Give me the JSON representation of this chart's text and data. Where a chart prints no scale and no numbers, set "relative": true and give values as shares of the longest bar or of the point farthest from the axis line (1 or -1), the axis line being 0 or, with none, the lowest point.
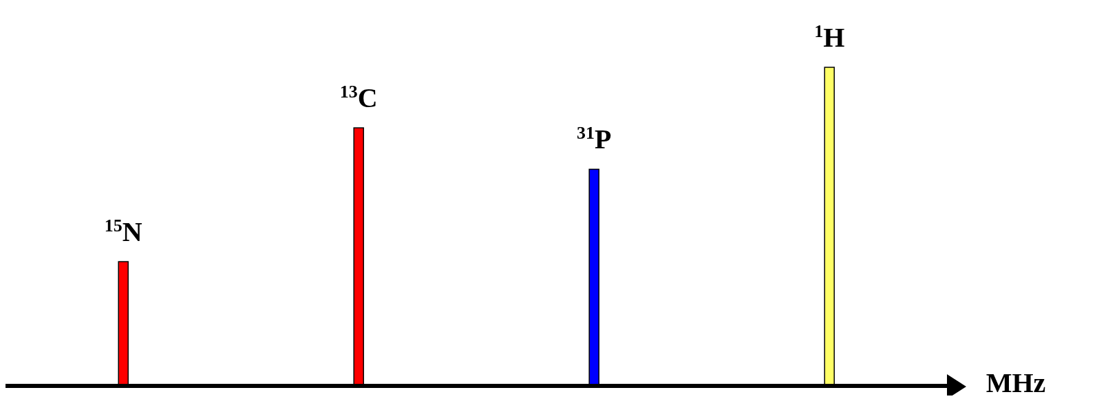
{
  "chart_data": {
    "type": "bar",
    "relative": true,
    "xlabel": "MHz",
    "categories": [
      "$^{15}$N",
      "$^{13}$C",
      "$^{31}$P",
      "$^{1}$H"
    ],
    "values": [
      0.39,
      0.81,
      0.68,
      1
    ],
    "colors": [
      "#ff0000",
      "#ff0000",
      "#0000ff",
      "#ffff66"
    ],
    "grid": false
  }
}
